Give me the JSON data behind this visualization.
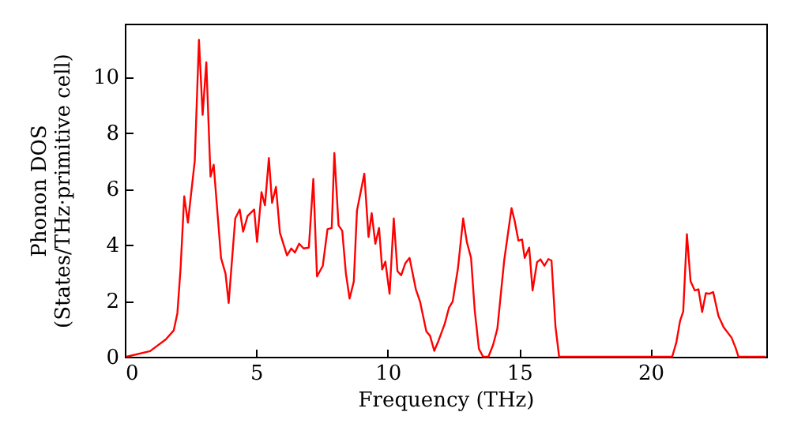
{
  "chart_data": {
    "type": "line",
    "xlabel": "Frequency (THz)",
    "ylabel": "Phonon DOS\n(States/THz·primitive cell)",
    "xlim": [
      0,
      24.4
    ],
    "xticks": [
      0,
      5,
      10,
      15,
      20
    ],
    "ylim": [
      0,
      11.9
    ],
    "yticks": [
      0,
      2,
      4,
      6,
      8,
      10
    ],
    "grid": false,
    "marker": "none",
    "line_style": "solid",
    "series": [
      {
        "color": "#ff0000",
        "x": [
          0.06,
          0.96,
          1.56,
          1.86,
          2.0,
          2.12,
          2.26,
          2.4,
          2.66,
          2.82,
          2.96,
          3.1,
          3.26,
          3.38,
          3.66,
          3.83,
          3.95,
          4.2,
          4.37,
          4.5,
          4.67,
          4.92,
          5.03,
          5.2,
          5.33,
          5.48,
          5.6,
          5.75,
          5.9,
          6.17,
          6.33,
          6.47,
          6.63,
          6.8,
          7.0,
          7.17,
          7.31,
          7.53,
          7.71,
          7.87,
          7.97,
          8.13,
          8.27,
          8.41,
          8.55,
          8.71,
          8.83,
          9.11,
          9.27,
          9.39,
          9.53,
          9.67,
          9.79,
          9.91,
          10.07,
          10.23,
          10.37,
          10.51,
          10.67,
          10.83,
          11.07,
          11.23,
          11.47,
          11.61,
          11.77,
          11.91,
          12.17,
          12.33,
          12.47,
          12.67,
          12.87,
          13.01,
          13.17,
          13.31,
          13.47,
          13.63,
          13.83,
          14.01,
          14.17,
          14.43,
          14.71,
          14.83,
          14.97,
          15.11,
          15.21,
          15.38,
          15.51,
          15.68,
          15.81,
          15.96,
          16.11,
          16.23,
          16.38,
          16.52,
          20.82,
          20.98,
          21.12,
          21.24,
          21.38,
          21.52,
          21.68,
          21.82,
          21.96,
          22.1,
          22.24,
          22.38,
          22.58,
          22.78,
          23.08,
          23.24,
          23.34,
          24.38
        ],
        "values": [
          0,
          0.2,
          0.62,
          0.94,
          1.56,
          3.15,
          5.73,
          4.79,
          7.0,
          11.32,
          8.64,
          10.52,
          6.44,
          6.86,
          3.53,
          2.97,
          1.92,
          4.94,
          5.26,
          4.47,
          5.03,
          5.26,
          4.1,
          5.88,
          5.41,
          7.1,
          5.5,
          6.07,
          4.43,
          3.62,
          3.87,
          3.72,
          4.04,
          3.87,
          3.9,
          6.35,
          2.87,
          3.25,
          4.56,
          4.6,
          7.28,
          4.69,
          4.5,
          2.97,
          2.08,
          2.69,
          5.22,
          6.54,
          4.28,
          5.13,
          4.04,
          4.6,
          3.12,
          3.4,
          2.25,
          4.94,
          3.06,
          2.91,
          3.34,
          3.53,
          2.41,
          1.97,
          0.9,
          0.75,
          0.21,
          0.52,
          1.18,
          1.75,
          1.97,
          3.15,
          4.94,
          4.1,
          3.53,
          1.65,
          0.28,
          0,
          0,
          0.43,
          1.0,
          3.44,
          5.31,
          4.85,
          4.15,
          4.19,
          3.53,
          3.9,
          2.37,
          3.38,
          3.48,
          3.25,
          3.49,
          3.44,
          1.09,
          0,
          0,
          0.52,
          1.28,
          1.62,
          4.38,
          2.69,
          2.37,
          2.41,
          1.6,
          2.27,
          2.25,
          2.31,
          1.46,
          1.05,
          0.68,
          0.3,
          0,
          0
        ]
      }
    ]
  }
}
